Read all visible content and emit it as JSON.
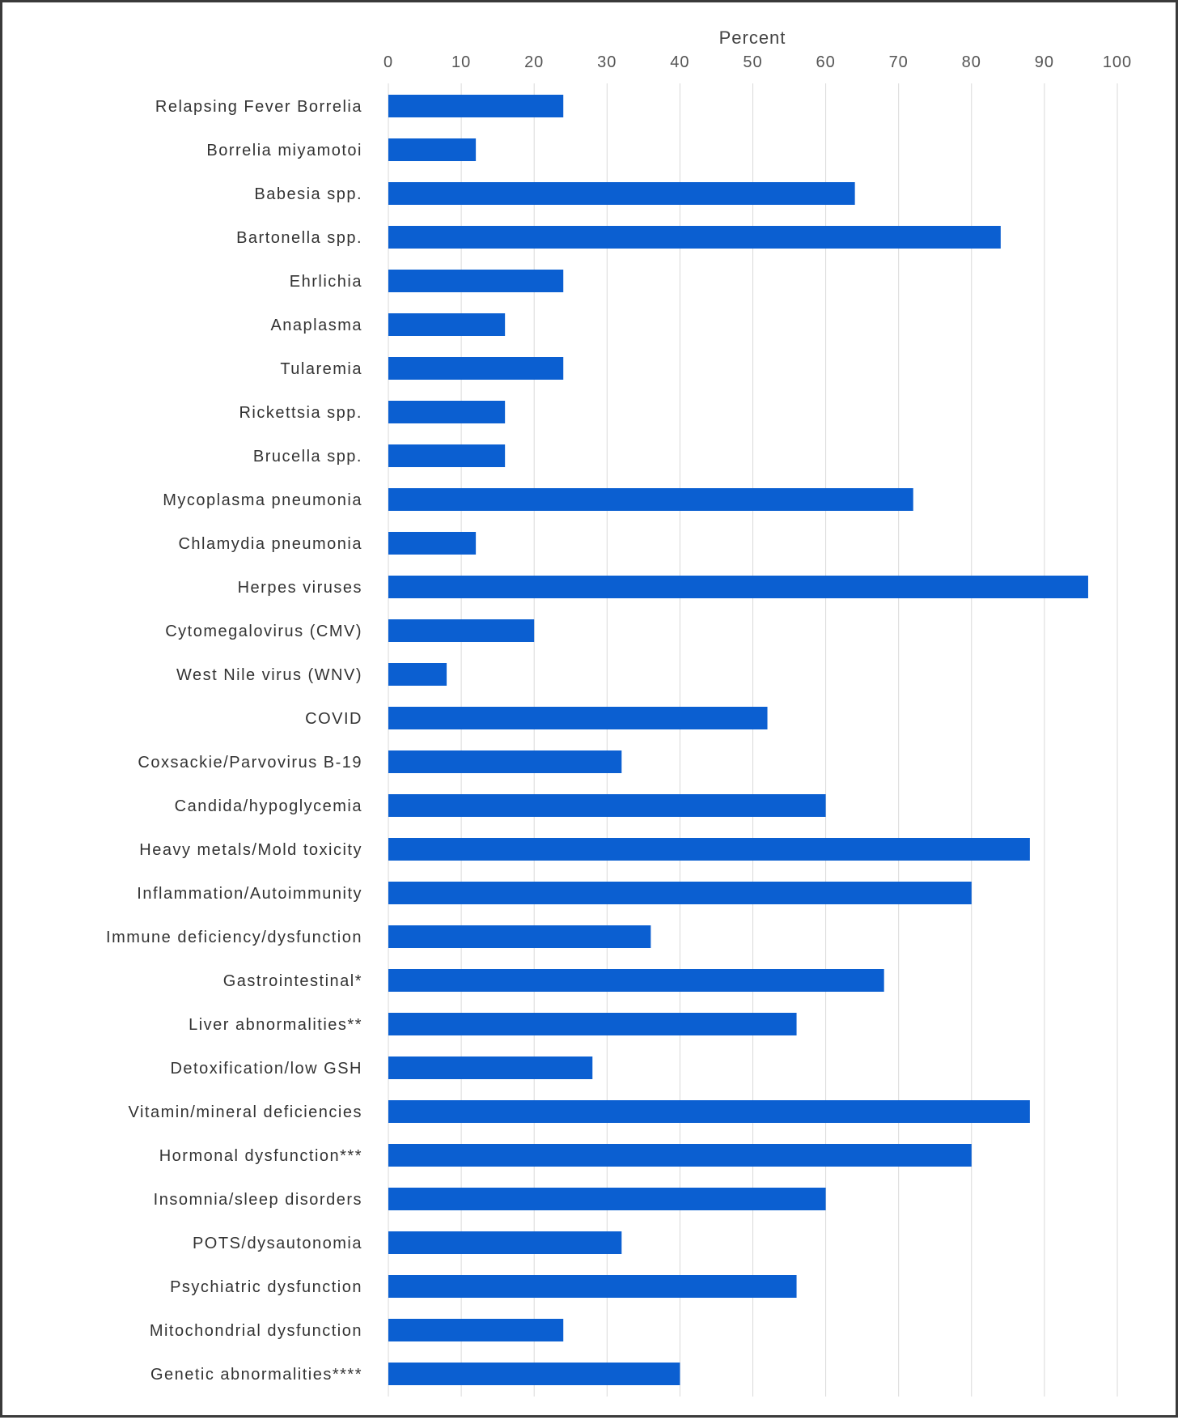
{
  "chart_data": {
    "type": "bar",
    "orientation": "horizontal",
    "title": "",
    "xlabel": "Percent",
    "ylabel": "",
    "xlim": [
      0,
      100
    ],
    "x_ticks": [
      0,
      10,
      20,
      30,
      40,
      50,
      60,
      70,
      80,
      90,
      100
    ],
    "x_axis_position": "top",
    "grid": "vertical",
    "legend": "none",
    "bar_color": "#0b5fd1",
    "categories": [
      "Relapsing Fever Borrelia",
      "Borrelia miyamotoi",
      "Babesia spp.",
      "Bartonella spp.",
      "Ehrlichia",
      "Anaplasma",
      "Tularemia",
      "Rickettsia spp.",
      "Brucella spp.",
      "Mycoplasma pneumonia",
      "Chlamydia pneumonia",
      "Herpes viruses",
      "Cytomegalovirus (CMV)",
      "West Nile virus (WNV)",
      "COVID",
      "Coxsackie/Parvovirus B-19",
      "Candida/hypoglycemia",
      "Heavy metals/Mold toxicity",
      "Inflammation/Autoimmunity",
      "Immune deficiency/dysfunction",
      "Gastrointestinal*",
      "Liver abnormalities**",
      "Detoxification/low GSH",
      "Vitamin/mineral deficiencies",
      "Hormonal dysfunction***",
      "Insomnia/sleep disorders",
      "POTS/dysautonomia",
      "Psychiatric dysfunction",
      "Mitochondrial dysfunction",
      "Genetic abnormalities****"
    ],
    "values": [
      24,
      12,
      64,
      84,
      24,
      16,
      24,
      16,
      16,
      72,
      12,
      96,
      20,
      8,
      52,
      32,
      60,
      88,
      80,
      36,
      68,
      56,
      28,
      88,
      80,
      60,
      32,
      56,
      24,
      40
    ]
  }
}
